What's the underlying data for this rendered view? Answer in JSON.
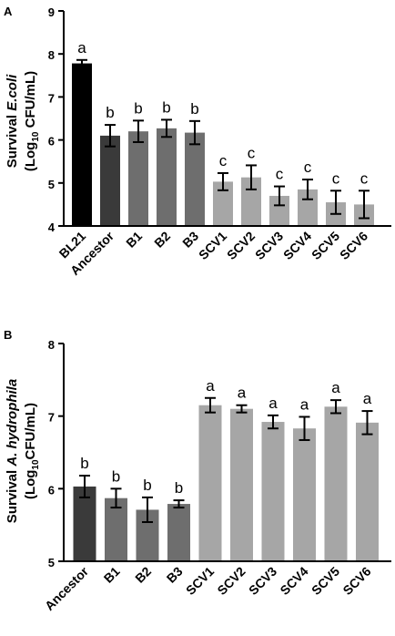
{
  "colors": {
    "black": "#000000",
    "ancestor": "#3a3a3a",
    "b_variants": "#6e6e6e",
    "scv_variants": "#a6a6a6",
    "axis": "#000000"
  },
  "chart_data": [
    {
      "type": "bar",
      "panel": "A",
      "ylabel_line1_prefix": "Survival ",
      "ylabel_line1_italic": "E.coli",
      "ylabel_line2_prefix": "(Log",
      "ylabel_line2_sub": "10",
      "ylabel_line2_suffix": " CFU/mL)",
      "ylim": [
        4,
        9
      ],
      "yticks": [
        "4",
        "5",
        "6",
        "7",
        "8",
        "9"
      ],
      "categories": [
        "BL21",
        "Ancestor",
        "B1",
        "B2",
        "B3",
        "SCV1",
        "SCV2",
        "SCV3",
        "SCV4",
        "SCV5",
        "SCV6"
      ],
      "values": [
        7.78,
        6.1,
        6.2,
        6.27,
        6.17,
        5.03,
        5.13,
        4.7,
        4.85,
        4.55,
        4.5
      ],
      "errors": [
        0.08,
        0.25,
        0.25,
        0.2,
        0.27,
        0.2,
        0.28,
        0.22,
        0.23,
        0.27,
        0.32
      ],
      "letters": [
        "a",
        "b",
        "b",
        "b",
        "b",
        "c",
        "c",
        "c",
        "c",
        "c",
        "c"
      ],
      "bar_colors": [
        "#000000",
        "#3a3a3a",
        "#6e6e6e",
        "#6e6e6e",
        "#6e6e6e",
        "#a6a6a6",
        "#a6a6a6",
        "#a6a6a6",
        "#a6a6a6",
        "#a6a6a6",
        "#a6a6a6"
      ]
    },
    {
      "type": "bar",
      "panel": "B",
      "ylabel_line1_prefix": "Survival ",
      "ylabel_line1_italic": "A. hydrophila",
      "ylabel_line2_prefix": "(Log",
      "ylabel_line2_sub": "10",
      "ylabel_line2_suffix": "CFU/mL)",
      "ylim": [
        5,
        8
      ],
      "yticks": [
        "5",
        "6",
        "7",
        "8"
      ],
      "categories": [
        "Ancestor",
        "B1",
        "B2",
        "B3",
        "SCV1",
        "SCV2",
        "SCV3",
        "SCV4",
        "SCV5",
        "SCV6"
      ],
      "values": [
        6.03,
        5.87,
        5.71,
        5.79,
        7.15,
        7.1,
        6.92,
        6.83,
        7.13,
        6.91
      ],
      "errors": [
        0.15,
        0.13,
        0.17,
        0.05,
        0.1,
        0.05,
        0.09,
        0.16,
        0.09,
        0.16
      ],
      "letters": [
        "b",
        "b",
        "b",
        "b",
        "a",
        "a",
        "a",
        "a",
        "a",
        "a"
      ],
      "bar_colors": [
        "#3a3a3a",
        "#6e6e6e",
        "#6e6e6e",
        "#6e6e6e",
        "#a6a6a6",
        "#a6a6a6",
        "#a6a6a6",
        "#a6a6a6",
        "#a6a6a6",
        "#a6a6a6"
      ]
    }
  ]
}
